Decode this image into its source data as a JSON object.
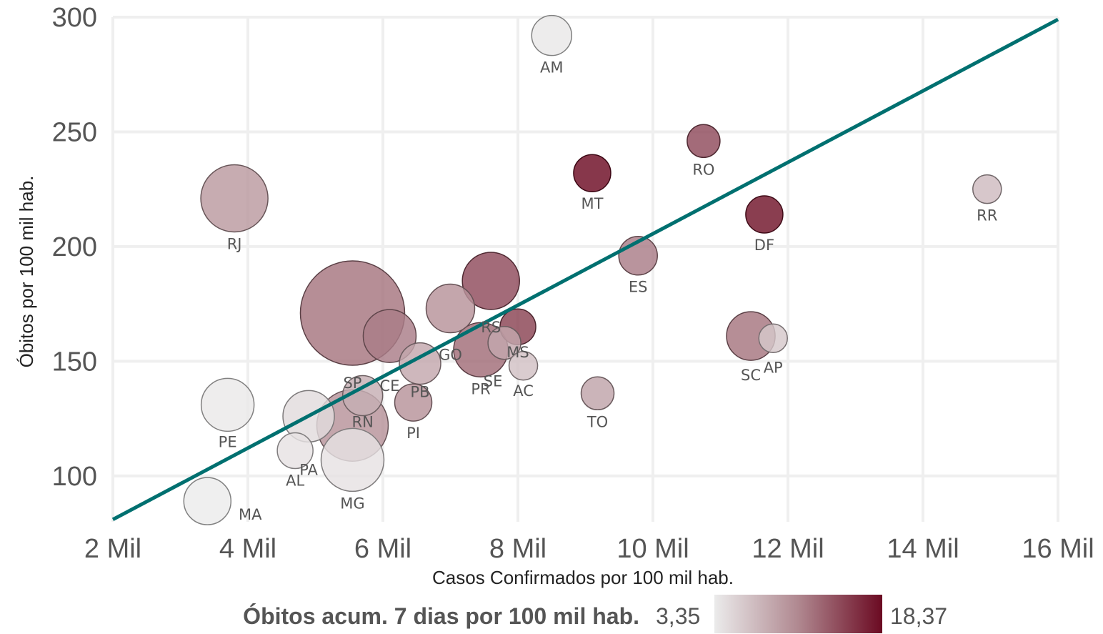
{
  "chart_data": {
    "type": "scatter",
    "xlabel": "Casos Confirmados por 100 mil hab.",
    "ylabel": "Óbitos por 100 mil hab.",
    "xlim": [
      2000,
      16000
    ],
    "ylim": [
      80,
      300
    ],
    "x_ticks": [
      {
        "value": 2000,
        "label": "2 Mil"
      },
      {
        "value": 4000,
        "label": "4 Mil"
      },
      {
        "value": 6000,
        "label": "6 Mil"
      },
      {
        "value": 8000,
        "label": "8 Mil"
      },
      {
        "value": 10000,
        "label": "10 Mil"
      },
      {
        "value": 12000,
        "label": "12 Mil"
      },
      {
        "value": 14000,
        "label": "14 Mil"
      },
      {
        "value": 16000,
        "label": "16 Mil"
      }
    ],
    "y_ticks": [
      {
        "value": 100,
        "label": "100"
      },
      {
        "value": 150,
        "label": "150"
      },
      {
        "value": 200,
        "label": "200"
      },
      {
        "value": 250,
        "label": "250"
      },
      {
        "value": 300,
        "label": "300"
      }
    ],
    "grid": true,
    "color_scale": {
      "title": "Óbitos acum. 7 dias por 100 mil hab.",
      "min": 3.35,
      "max": 18.37,
      "min_label": "3,35",
      "max_label": "18,37",
      "colors": [
        "#ebebeb",
        "#b08890",
        "#6b0a22"
      ]
    },
    "trend_line": {
      "color": "#007070",
      "from": [
        2000,
        81
      ],
      "to": [
        16000,
        299
      ]
    },
    "points": [
      {
        "label": "AM",
        "x": 8500,
        "y": 292,
        "r": 28,
        "c": 3.6
      },
      {
        "label": "RO",
        "x": 10750,
        "y": 246,
        "r": 23,
        "c": 14.5
      },
      {
        "label": "MT",
        "x": 9100,
        "y": 232,
        "r": 26,
        "c": 18.3
      },
      {
        "label": "RR",
        "x": 14950,
        "y": 225,
        "r": 20,
        "c": 7.0
      },
      {
        "label": "RJ",
        "x": 3800,
        "y": 221,
        "r": 47,
        "c": 9.5
      },
      {
        "label": "DF",
        "x": 11650,
        "y": 214,
        "r": 26,
        "c": 17.8
      },
      {
        "label": "ES",
        "x": 9780,
        "y": 196,
        "r": 27,
        "c": 11.5
      },
      {
        "label": "RS",
        "x": 7600,
        "y": 185,
        "r": 40,
        "c": 14.5
      },
      {
        "label": "GO",
        "x": 7000,
        "y": 173,
        "r": 34,
        "c": 10.0
      },
      {
        "label": "SP",
        "x": 5550,
        "y": 171,
        "r": 73,
        "c": 12.0
      },
      {
        "label": "PR",
        "x": 7450,
        "y": 155,
        "r": 38,
        "c": 12.5
      },
      {
        "label": "SE",
        "x": 7800,
        "y": 158,
        "r": 23,
        "c": 8.5
      },
      {
        "label": "MS",
        "x": 8000,
        "y": 165,
        "r": 25,
        "c": 15.0
      },
      {
        "label": "CE",
        "x": 6100,
        "y": 161,
        "r": 37,
        "c": 11.5
      },
      {
        "label": "SC",
        "x": 11450,
        "y": 161,
        "r": 34,
        "c": 12.0
      },
      {
        "label": "AP",
        "x": 11780,
        "y": 160,
        "r": 20,
        "c": 6.0
      },
      {
        "label": "PB",
        "x": 6550,
        "y": 149,
        "r": 29,
        "c": 8.5
      },
      {
        "label": "AC",
        "x": 8080,
        "y": 148,
        "r": 20,
        "c": 6.5
      },
      {
        "label": "TO",
        "x": 9180,
        "y": 136,
        "r": 23,
        "c": 8.8
      },
      {
        "label": "RN",
        "x": 5700,
        "y": 135,
        "r": 28,
        "c": 8.0
      },
      {
        "label": "PI",
        "x": 6450,
        "y": 132,
        "r": 26,
        "c": 10.0
      },
      {
        "label": "PE",
        "x": 3700,
        "y": 131,
        "r": 37,
        "c": 3.5
      },
      {
        "label": "PA",
        "x": 4900,
        "y": 126,
        "r": 36,
        "c": 4.5
      },
      {
        "label": "RN2",
        "x": 5550,
        "y": 122,
        "r": 50,
        "c": 10.0
      },
      {
        "label": "AL",
        "x": 4700,
        "y": 111,
        "r": 25,
        "c": 4.0
      },
      {
        "label": "MG",
        "x": 5550,
        "y": 107,
        "r": 44,
        "c": 4.0
      },
      {
        "label": "MA",
        "x": 3400,
        "y": 89,
        "r": 33,
        "c": 3.35
      }
    ]
  }
}
